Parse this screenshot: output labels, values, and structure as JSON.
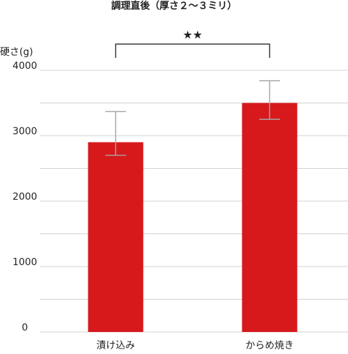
{
  "chart_data": {
    "type": "bar",
    "title": "調理直後（厚さ２～３ミリ）",
    "ylabel": "硬さ(g)",
    "xlabel": "",
    "categories": [
      "漬け込み",
      "からめ焼き"
    ],
    "values": [
      2900,
      3500
    ],
    "error_low": [
      2700,
      3250
    ],
    "error_high": [
      3370,
      3840
    ],
    "ylim": [
      0,
      4000
    ],
    "yticks": [
      0,
      1000,
      2000,
      3000,
      4000
    ],
    "ytick_labels": [
      "0",
      "1000",
      "2000",
      "3000",
      "4000"
    ],
    "grid": true,
    "significance": "★★",
    "bar_color": "#d7191c",
    "error_color": "#a6a6a6",
    "grid_color": "#d0d0d0"
  }
}
